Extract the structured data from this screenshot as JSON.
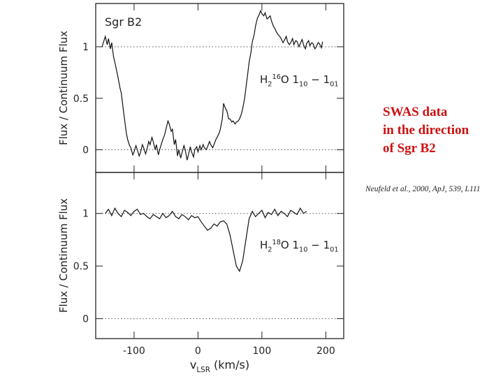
{
  "slide": {
    "heading": [
      "SWAS data",
      "in the direction",
      "of Sgr B2"
    ],
    "citation": "Neufeld et al., 2000, ApJ, 539, L111"
  },
  "chart_data": [
    {
      "type": "line",
      "annotation": "Sgr B2",
      "ylabel": "Flux / Continuum Flux",
      "line_label": [
        {
          "t": "H",
          "s": "base"
        },
        {
          "t": "2",
          "s": "sub"
        },
        {
          "t": "16",
          "s": "sup"
        },
        {
          "t": "O  1",
          "s": "base"
        },
        {
          "t": "10",
          "s": "sub"
        },
        {
          "t": " − 1",
          "s": "base"
        },
        {
          "t": "01",
          "s": "sub"
        }
      ],
      "xlim": [
        -160,
        228
      ],
      "ylim": [
        -0.22,
        1.42
      ],
      "yticks": [
        0,
        0.5,
        1
      ],
      "reference_lines": [
        0,
        1
      ],
      "series": [
        {
          "color": "#111111",
          "x": [
            -150,
            -147,
            -145,
            -142,
            -140,
            -137,
            -135,
            -132,
            -130,
            -127,
            -125,
            -122,
            -120,
            -117,
            -115,
            -112,
            -110,
            -107,
            -105,
            -102,
            -100,
            -97,
            -95,
            -92,
            -90,
            -87,
            -85,
            -82,
            -80,
            -77,
            -75,
            -72,
            -70,
            -67,
            -65,
            -62,
            -60,
            -57,
            -55,
            -52,
            -50,
            -47,
            -45,
            -42,
            -40,
            -37,
            -35,
            -32,
            -30,
            -27,
            -25,
            -22,
            -20,
            -17,
            -15,
            -12,
            -10,
            -7,
            -5,
            -2,
            0,
            3,
            5,
            8,
            10,
            13,
            15,
            18,
            20,
            23,
            25,
            28,
            30,
            33,
            35,
            38,
            40,
            43,
            45,
            48,
            50,
            53,
            55,
            58,
            60,
            63,
            65,
            68,
            70,
            73,
            75,
            78,
            80,
            83,
            85,
            88,
            90,
            93,
            95,
            98,
            100,
            103,
            105,
            108,
            110,
            113,
            115,
            118,
            120,
            123,
            125,
            128,
            130,
            133,
            135,
            138,
            140,
            143,
            145,
            148,
            150,
            153,
            155,
            158,
            160,
            163,
            165,
            168,
            170,
            173,
            175,
            178,
            180,
            183,
            185,
            188,
            190,
            193,
            195
          ],
          "values": [
            1.0,
            1.06,
            1.1,
            1.02,
            1.08,
            0.98,
            1.04,
            0.9,
            0.85,
            0.76,
            0.7,
            0.6,
            0.55,
            0.4,
            0.3,
            0.16,
            0.1,
            0.04,
            0.02,
            -0.05,
            -0.02,
            0.04,
            0.0,
            -0.06,
            -0.03,
            0.05,
            0.02,
            -0.04,
            0.0,
            0.08,
            0.05,
            0.12,
            0.08,
            0.0,
            0.05,
            -0.05,
            0.0,
            0.06,
            0.1,
            0.15,
            0.2,
            0.28,
            0.25,
            0.18,
            0.2,
            0.05,
            0.1,
            -0.06,
            0.0,
            -0.08,
            -0.03,
            0.04,
            0.0,
            -0.1,
            -0.05,
            0.03,
            -0.02,
            -0.07,
            0.0,
            0.03,
            -0.02,
            0.04,
            0.0,
            0.05,
            0.02,
            0.0,
            0.03,
            0.08,
            0.05,
            0.02,
            0.05,
            0.1,
            0.12,
            0.16,
            0.2,
            0.3,
            0.45,
            0.4,
            0.38,
            0.3,
            0.3,
            0.27,
            0.28,
            0.25,
            0.27,
            0.28,
            0.3,
            0.35,
            0.4,
            0.5,
            0.6,
            0.75,
            0.85,
            0.95,
            1.05,
            1.12,
            1.2,
            1.28,
            1.3,
            1.35,
            1.32,
            1.3,
            1.33,
            1.27,
            1.28,
            1.3,
            1.25,
            1.2,
            1.18,
            1.14,
            1.12,
            1.1,
            1.08,
            1.04,
            1.06,
            1.1,
            1.05,
            1.02,
            1.04,
            1.08,
            1.02,
            1.06,
            1.05,
            1.0,
            1.03,
            1.07,
            1.02,
            0.98,
            1.03,
            1.06,
            1.01,
            1.04,
            1.03,
            0.98,
            1.0,
            1.04,
            1.03,
            0.99,
            1.05
          ]
        }
      ]
    },
    {
      "type": "line",
      "ylabel": "Flux / Continuum Flux",
      "xlabel": [
        {
          "t": "v",
          "s": "base"
        },
        {
          "t": "LSR",
          "s": "sub"
        },
        {
          "t": " (km/s)",
          "s": "base"
        }
      ],
      "line_label": [
        {
          "t": "H",
          "s": "base"
        },
        {
          "t": "2",
          "s": "sub"
        },
        {
          "t": "18",
          "s": "sup"
        },
        {
          "t": "O  1",
          "s": "base"
        },
        {
          "t": "10",
          "s": "sub"
        },
        {
          "t": " − 1",
          "s": "base"
        },
        {
          "t": "01",
          "s": "sub"
        }
      ],
      "xlim": [
        -160,
        228
      ],
      "ylim": [
        -0.19,
        1.39
      ],
      "xticks": [
        -100,
        0,
        100,
        200
      ],
      "yticks": [
        0,
        0.5,
        1
      ],
      "reference_lines": [
        0,
        1
      ],
      "series": [
        {
          "color": "#111111",
          "x": [
            -145,
            -140,
            -135,
            -130,
            -125,
            -120,
            -115,
            -110,
            -105,
            -100,
            -95,
            -90,
            -85,
            -80,
            -75,
            -70,
            -65,
            -60,
            -55,
            -50,
            -45,
            -40,
            -35,
            -30,
            -25,
            -20,
            -15,
            -10,
            -5,
            0,
            5,
            10,
            15,
            20,
            25,
            30,
            35,
            40,
            45,
            50,
            55,
            60,
            65,
            70,
            75,
            80,
            85,
            90,
            95,
            100,
            105,
            110,
            115,
            120,
            125,
            130,
            135,
            140,
            145,
            150,
            155,
            160,
            165,
            170
          ],
          "values": [
            1.0,
            1.04,
            0.98,
            1.05,
            1.0,
            0.97,
            1.03,
            1.01,
            0.98,
            1.02,
            1.04,
            0.99,
            1.0,
            0.97,
            0.95,
            0.99,
            0.97,
            0.95,
            1.0,
            0.96,
            0.98,
            1.02,
            0.97,
            0.95,
            0.99,
            0.97,
            0.94,
            0.98,
            0.96,
            0.97,
            0.92,
            0.88,
            0.84,
            0.86,
            0.9,
            0.88,
            0.92,
            0.93,
            0.9,
            0.8,
            0.65,
            0.5,
            0.45,
            0.55,
            0.75,
            0.95,
            1.02,
            0.97,
            1.0,
            1.03,
            0.96,
            1.01,
            0.99,
            1.04,
            0.98,
            1.02,
            1.0,
            0.97,
            1.03,
            1.01,
            0.99,
            1.05,
            1.0,
            1.02
          ]
        }
      ]
    }
  ]
}
